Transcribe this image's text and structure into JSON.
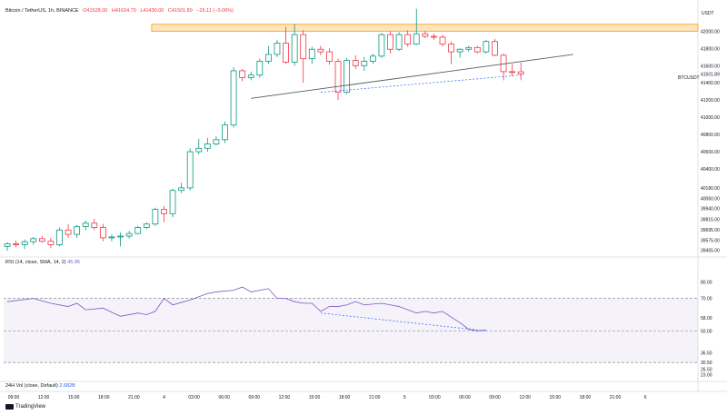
{
  "header": {
    "symbol": "Bitcoin / TetherUS, 1h, BINANCE",
    "open": "O41528.00",
    "high": "H41634.70",
    "low": "L41430.00",
    "close": "C41501.89",
    "change": "−26.11 (−0.06%)"
  },
  "currency": "USDT",
  "symbol_label": "BTCUSDT",
  "rsi": {
    "label": "RSI (14, close, SMA, 14, 2)",
    "value": "45.95"
  },
  "volume": {
    "label": "24H Vol (close, Default)",
    "value": "2.682B"
  },
  "branding": "TradingView",
  "colors": {
    "up": "#089981",
    "down": "#f23645",
    "rsi": "#7e57c2",
    "zone": "#ff9800",
    "trend": "#131722"
  },
  "chart_data": [
    {
      "type": "candlestick",
      "title": "Bitcoin / TetherUS, 1h, BINANCE",
      "ylabel": "USDT",
      "ylim": [
        39430,
        42130
      ],
      "x_ticks": [
        "09:00",
        "12:00",
        "15:00",
        "18:00",
        "21:00",
        "4",
        "03:00",
        "06:00",
        "09:00",
        "12:00",
        "15:00",
        "18:00",
        "21:00",
        "5",
        "03:00",
        "06:00",
        "09:00",
        "12:00",
        "15:00",
        "18:00",
        "21:00",
        "6"
      ],
      "y_ticks": [
        {
          "value": 42000,
          "label": "42000.00"
        },
        {
          "value": 41800,
          "label": "41800.00"
        },
        {
          "value": 41600,
          "label": "41600.00"
        },
        {
          "value": 41400,
          "label": "41400.00"
        },
        {
          "value": 41200,
          "label": "41200.00"
        },
        {
          "value": 41000,
          "label": "41000.00"
        },
        {
          "value": 40800,
          "label": "40800.00"
        },
        {
          "value": 40600,
          "label": "40600.00"
        },
        {
          "value": 40400,
          "label": "40400.00"
        },
        {
          "value": 40180,
          "label": "40180.00"
        },
        {
          "value": 40060,
          "label": "40060.00"
        },
        {
          "value": 39940,
          "label": "39940.00"
        },
        {
          "value": 39815,
          "label": "39815.00"
        },
        {
          "value": 39695,
          "label": "39695.00"
        },
        {
          "value": 39575,
          "label": "39575.00"
        },
        {
          "value": 39455,
          "label": "39455.00"
        }
      ],
      "last_price": 41501.89,
      "candles": [
        {
          "o": 39500,
          "h": 39550,
          "l": 39450,
          "c": 39530
        },
        {
          "o": 39530,
          "h": 39570,
          "l": 39490,
          "c": 39520
        },
        {
          "o": 39520,
          "h": 39580,
          "l": 39470,
          "c": 39555
        },
        {
          "o": 39555,
          "h": 39610,
          "l": 39520,
          "c": 39590
        },
        {
          "o": 39590,
          "h": 39620,
          "l": 39545,
          "c": 39560
        },
        {
          "o": 39560,
          "h": 39600,
          "l": 39480,
          "c": 39520
        },
        {
          "o": 39520,
          "h": 39720,
          "l": 39500,
          "c": 39690
        },
        {
          "o": 39690,
          "h": 39760,
          "l": 39600,
          "c": 39640
        },
        {
          "o": 39640,
          "h": 39750,
          "l": 39600,
          "c": 39730
        },
        {
          "o": 39730,
          "h": 39800,
          "l": 39690,
          "c": 39770
        },
        {
          "o": 39770,
          "h": 39820,
          "l": 39690,
          "c": 39720
        },
        {
          "o": 39720,
          "h": 39760,
          "l": 39560,
          "c": 39600
        },
        {
          "o": 39600,
          "h": 39640,
          "l": 39560,
          "c": 39610
        },
        {
          "o": 39610,
          "h": 39660,
          "l": 39500,
          "c": 39620
        },
        {
          "o": 39620,
          "h": 39680,
          "l": 39590,
          "c": 39650
        },
        {
          "o": 39650,
          "h": 39740,
          "l": 39640,
          "c": 39720
        },
        {
          "o": 39720,
          "h": 39780,
          "l": 39700,
          "c": 39760
        },
        {
          "o": 39760,
          "h": 39950,
          "l": 39740,
          "c": 39930
        },
        {
          "o": 39930,
          "h": 39970,
          "l": 39780,
          "c": 39880
        },
        {
          "o": 39880,
          "h": 40170,
          "l": 39840,
          "c": 40150
        },
        {
          "o": 40150,
          "h": 40240,
          "l": 40120,
          "c": 40180
        },
        {
          "o": 40180,
          "h": 40640,
          "l": 40150,
          "c": 40600
        },
        {
          "o": 40600,
          "h": 40750,
          "l": 40570,
          "c": 40640
        },
        {
          "o": 40640,
          "h": 40760,
          "l": 40600,
          "c": 40690
        },
        {
          "o": 40690,
          "h": 40780,
          "l": 40670,
          "c": 40740
        },
        {
          "o": 40740,
          "h": 40950,
          "l": 40700,
          "c": 40910
        },
        {
          "o": 40910,
          "h": 41580,
          "l": 40880,
          "c": 41540
        },
        {
          "o": 41540,
          "h": 41560,
          "l": 41420,
          "c": 41460
        },
        {
          "o": 41460,
          "h": 41530,
          "l": 41430,
          "c": 41490
        },
        {
          "o": 41490,
          "h": 41680,
          "l": 41460,
          "c": 41650
        },
        {
          "o": 41650,
          "h": 41830,
          "l": 41620,
          "c": 41730
        },
        {
          "o": 41730,
          "h": 41900,
          "l": 41700,
          "c": 41860
        },
        {
          "o": 41860,
          "h": 42050,
          "l": 41620,
          "c": 41640
        },
        {
          "o": 41640,
          "h": 42080,
          "l": 41600,
          "c": 41960
        },
        {
          "o": 41960,
          "h": 42010,
          "l": 41400,
          "c": 41680
        },
        {
          "o": 41680,
          "h": 41820,
          "l": 41620,
          "c": 41790
        },
        {
          "o": 41790,
          "h": 41830,
          "l": 41720,
          "c": 41760
        },
        {
          "o": 41760,
          "h": 41800,
          "l": 41610,
          "c": 41650
        },
        {
          "o": 41650,
          "h": 41680,
          "l": 41200,
          "c": 41290
        },
        {
          "o": 41290,
          "h": 41690,
          "l": 41270,
          "c": 41660
        },
        {
          "o": 41660,
          "h": 41720,
          "l": 41560,
          "c": 41600
        },
        {
          "o": 41600,
          "h": 41700,
          "l": 41540,
          "c": 41650
        },
        {
          "o": 41650,
          "h": 41740,
          "l": 41620,
          "c": 41710
        },
        {
          "o": 41710,
          "h": 41980,
          "l": 41690,
          "c": 41960
        },
        {
          "o": 41960,
          "h": 42000,
          "l": 41740,
          "c": 41790
        },
        {
          "o": 41790,
          "h": 41990,
          "l": 41770,
          "c": 41960
        },
        {
          "o": 41960,
          "h": 42010,
          "l": 41820,
          "c": 41850
        },
        {
          "o": 41850,
          "h": 42260,
          "l": 41840,
          "c": 41970
        },
        {
          "o": 41970,
          "h": 42000,
          "l": 41920,
          "c": 41940
        },
        {
          "o": 41940,
          "h": 41970,
          "l": 41900,
          "c": 41930
        },
        {
          "o": 41930,
          "h": 41960,
          "l": 41820,
          "c": 41850
        },
        {
          "o": 41850,
          "h": 41880,
          "l": 41620,
          "c": 41760
        },
        {
          "o": 41760,
          "h": 41800,
          "l": 41690,
          "c": 41790
        },
        {
          "o": 41790,
          "h": 41830,
          "l": 41760,
          "c": 41810
        },
        {
          "o": 41810,
          "h": 41830,
          "l": 41740,
          "c": 41760
        },
        {
          "o": 41760,
          "h": 41900,
          "l": 41740,
          "c": 41880
        },
        {
          "o": 41880,
          "h": 41910,
          "l": 41710,
          "c": 41720
        },
        {
          "o": 41720,
          "h": 41740,
          "l": 41430,
          "c": 41530
        },
        {
          "o": 41530,
          "h": 41620,
          "l": 41480,
          "c": 41528
        },
        {
          "o": 41528,
          "h": 41634.7,
          "l": 41430,
          "c": 41501.89
        }
      ],
      "resistance_zone": {
        "from_index": 17,
        "low": 42000,
        "high": 42080
      },
      "trendlines": [
        {
          "from": [
            28,
            41220
          ],
          "to": [
            65,
            41730
          ],
          "style": "solid"
        },
        {
          "from": [
            36,
            41290
          ],
          "to": [
            59,
            41490
          ],
          "style": "dashed"
        }
      ]
    },
    {
      "type": "line",
      "title": "RSI (14, close, SMA, 14, 2)",
      "ylim": [
        20,
        86
      ],
      "y_ticks": [
        {
          "value": 80,
          "label": "80.00"
        },
        {
          "value": 70,
          "label": "70.00"
        },
        {
          "value": 58,
          "label": "58.00"
        },
        {
          "value": 50,
          "label": "50.00"
        },
        {
          "value": 36.5,
          "label": "36.50"
        },
        {
          "value": 30.5,
          "label": "30.50"
        },
        {
          "value": 26.5,
          "label": "26.50"
        },
        {
          "value": 23,
          "label": "23.00"
        }
      ],
      "upper_band": 70,
      "middle_band": 50,
      "lower_band": 30.5,
      "values": [
        [
          0,
          68
        ],
        [
          3,
          70
        ],
        [
          5,
          67
        ],
        [
          7,
          65
        ],
        [
          8,
          67
        ],
        [
          9,
          63
        ],
        [
          11,
          64
        ],
        [
          13,
          59
        ],
        [
          15,
          61
        ],
        [
          16,
          60
        ],
        [
          17,
          62
        ],
        [
          18,
          70
        ],
        [
          19,
          66
        ],
        [
          21,
          69
        ],
        [
          23,
          73
        ],
        [
          24,
          74
        ],
        [
          26,
          75
        ],
        [
          27,
          77
        ],
        [
          28,
          74
        ],
        [
          30,
          76
        ],
        [
          31,
          70
        ],
        [
          32,
          70
        ],
        [
          33,
          68
        ],
        [
          34,
          67
        ],
        [
          35,
          67
        ],
        [
          36,
          62
        ],
        [
          37,
          65
        ],
        [
          38,
          65
        ],
        [
          39,
          66
        ],
        [
          40,
          68
        ],
        [
          41,
          66
        ],
        [
          43,
          67
        ],
        [
          44,
          66
        ],
        [
          45,
          65
        ],
        [
          46,
          63
        ],
        [
          47,
          61
        ],
        [
          48,
          62
        ],
        [
          49,
          61
        ],
        [
          50,
          62
        ],
        [
          52,
          55
        ],
        [
          53,
          51
        ],
        [
          54,
          50
        ],
        [
          55,
          50.5
        ]
      ],
      "divergence_line": {
        "from": [
          36,
          61
        ],
        "to": [
          55,
          50
        ],
        "style": "dashed"
      }
    }
  ]
}
